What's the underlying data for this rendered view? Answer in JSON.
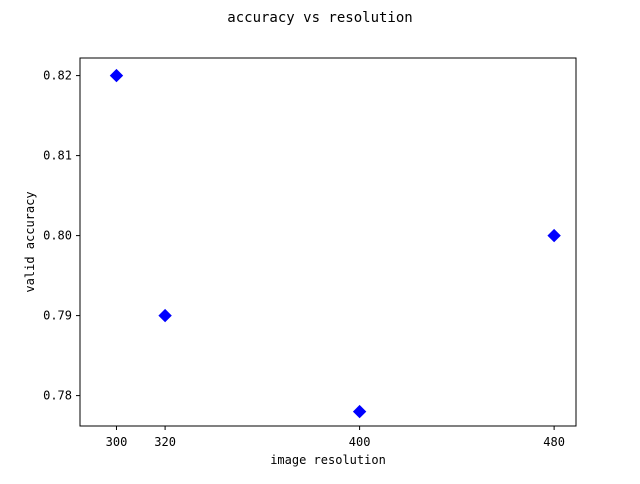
{
  "chart_data": {
    "type": "scatter",
    "title": "accuracy vs resolution",
    "xlabel": "image resolution",
    "ylabel": "valid accuracy",
    "xlim": [
      285,
      489
    ],
    "ylim": [
      0.7762,
      0.8222
    ],
    "xticks": [
      300,
      320,
      400,
      480
    ],
    "xtick_labels": [
      "300",
      "320",
      "400",
      "480"
    ],
    "yticks": [
      0.78,
      0.79,
      0.8,
      0.81,
      0.82
    ],
    "ytick_labels": [
      "0.78",
      "0.79",
      "0.80",
      "0.81",
      "0.82"
    ],
    "grid": false,
    "marker": "diamond",
    "marker_color": "#0000ff",
    "points": [
      {
        "x": 300,
        "y": 0.82
      },
      {
        "x": 320,
        "y": 0.79
      },
      {
        "x": 400,
        "y": 0.778
      },
      {
        "x": 480,
        "y": 0.8
      }
    ]
  }
}
